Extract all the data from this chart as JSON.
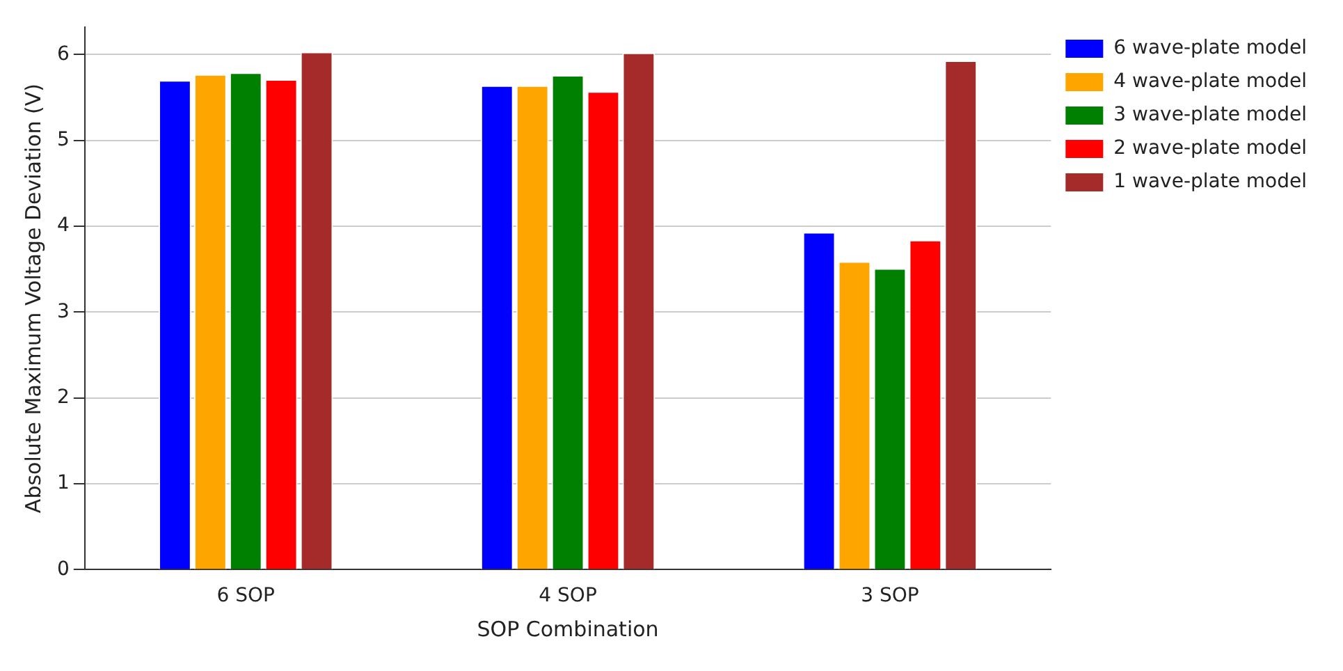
{
  "chart_data": {
    "type": "bar",
    "xlabel": "SOP Combination",
    "ylabel": "Absolute Maximum Voltage Deviation (V)",
    "categories": [
      "6 SOP",
      "4 SOP",
      "3 SOP"
    ],
    "series": [
      {
        "name": "6 wave-plate model",
        "color": "#0000ff",
        "values": [
          5.7,
          5.64,
          3.93
        ]
      },
      {
        "name": "4 wave-plate model",
        "color": "#ffa500",
        "values": [
          5.77,
          5.64,
          3.59
        ]
      },
      {
        "name": "3 wave-plate model",
        "color": "#008000",
        "values": [
          5.79,
          5.76,
          3.51
        ]
      },
      {
        "name": "2 wave-plate model",
        "color": "#ff0000",
        "values": [
          5.71,
          5.57,
          3.84
        ]
      },
      {
        "name": "1 wave-plate model",
        "color": "#a52a2a",
        "values": [
          6.03,
          6.02,
          5.93
        ]
      }
    ],
    "ylim": [
      0,
      6.32
    ],
    "yticks": [
      0,
      1,
      2,
      3,
      4,
      5,
      6
    ],
    "grid": "y",
    "legend": "top right"
  }
}
